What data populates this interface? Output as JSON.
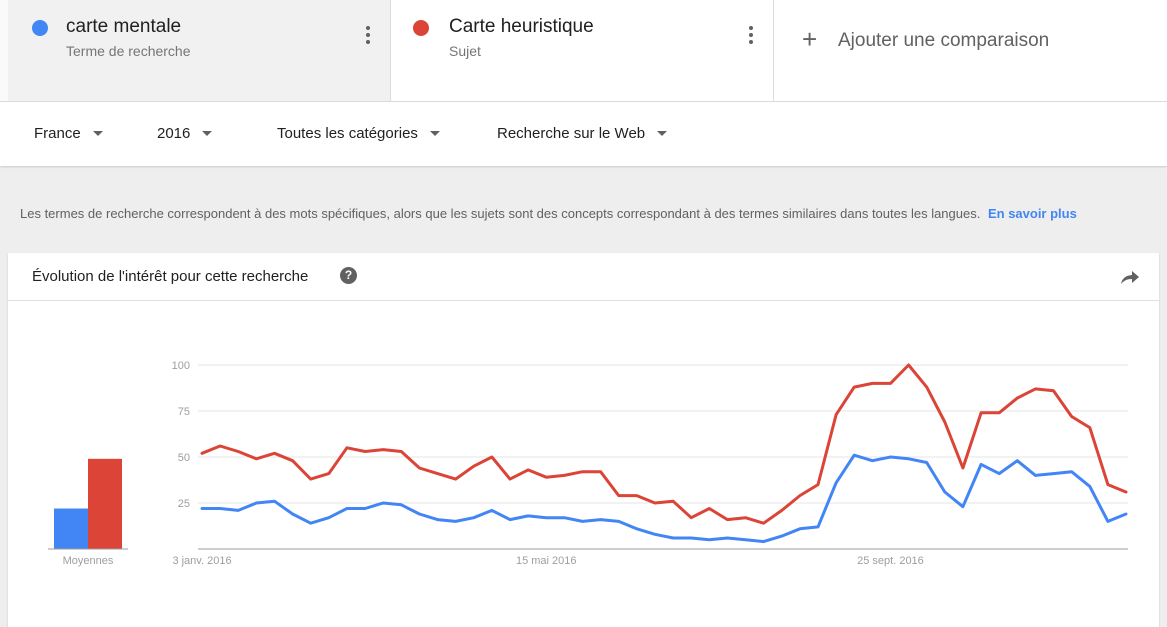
{
  "terms": [
    {
      "name": "carte mentale",
      "type": "Terme de recherche",
      "color": "#4285f4"
    },
    {
      "name": "Carte heuristique",
      "type": "Sujet",
      "color": "#db4437"
    }
  ],
  "add_comparison": {
    "label": "Ajouter une comparaison",
    "icon": "plus-icon"
  },
  "filters": {
    "region": "France",
    "period": "2016",
    "category": "Toutes les catégories",
    "search_type": "Recherche sur le Web"
  },
  "notice": {
    "text": "Les termes de recherche correspondent à des mots spécifiques, alors que les sujets sont des concepts correspondant à des termes similaires dans toutes les langues.",
    "link": "En savoir plus"
  },
  "card": {
    "title": "Évolution de l'intérêt pour cette recherche",
    "help_icon": "help-icon",
    "share_icon": "share-icon",
    "help_glyph": "?"
  },
  "chart_data": {
    "type": "line",
    "ylim": [
      0,
      100
    ],
    "y_ticks": [
      "100",
      "75",
      "50",
      "25"
    ],
    "x_tick_labels": [
      {
        "label": "3 janv. 2016",
        "index": 0
      },
      {
        "label": "15 mai 2016",
        "index": 19
      },
      {
        "label": "25 sept. 2016",
        "index": 38
      }
    ],
    "averages_label": "Moyennes",
    "averages": [
      22,
      49
    ],
    "series": [
      {
        "color": "#4285f4",
        "values": [
          22,
          22,
          21,
          25,
          26,
          19,
          14,
          17,
          22,
          22,
          25,
          24,
          19,
          16,
          15,
          17,
          21,
          16,
          18,
          17,
          17,
          15,
          16,
          15,
          11,
          8,
          6,
          6,
          5,
          6,
          5,
          4,
          7,
          11,
          12,
          36,
          51,
          48,
          50,
          49,
          47,
          31,
          23,
          46,
          41,
          48,
          40,
          41,
          42,
          34,
          15,
          19
        ]
      },
      {
        "color": "#db4437",
        "values": [
          52,
          56,
          53,
          49,
          52,
          48,
          38,
          41,
          55,
          53,
          54,
          53,
          44,
          41,
          38,
          45,
          50,
          38,
          43,
          39,
          40,
          42,
          42,
          29,
          29,
          25,
          26,
          17,
          22,
          16,
          17,
          14,
          21,
          29,
          35,
          73,
          88,
          90,
          90,
          100,
          88,
          69,
          44,
          74,
          74,
          82,
          87,
          86,
          72,
          66,
          35,
          31
        ]
      }
    ]
  }
}
